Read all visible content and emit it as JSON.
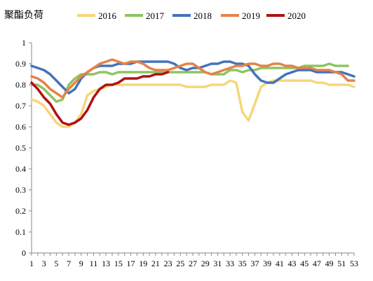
{
  "chart_data": {
    "type": "line",
    "title": "聚酯负荷",
    "xlabel": "",
    "ylabel": "",
    "ylim": [
      0,
      1
    ],
    "yticks": [
      "0",
      "0.1",
      "0.2",
      "0.3",
      "0.4",
      "0.5",
      "0.6",
      "0.7",
      "0.8",
      "0.9",
      "1"
    ],
    "xlim": [
      1,
      53
    ],
    "xticks": [
      "1",
      "3",
      "5",
      "7",
      "9",
      "11",
      "13",
      "15",
      "17",
      "19",
      "21",
      "23",
      "25",
      "27",
      "29",
      "31",
      "33",
      "35",
      "37",
      "39",
      "41",
      "43",
      "45",
      "47",
      "49",
      "51",
      "53"
    ],
    "grid": false,
    "legend_position": "top",
    "series": [
      {
        "name": "2016",
        "color": "#F5D67A",
        "x": [
          1,
          2,
          3,
          4,
          5,
          6,
          7,
          8,
          9,
          10,
          11,
          12,
          13,
          14,
          15,
          16,
          17,
          18,
          19,
          20,
          21,
          22,
          23,
          24,
          25,
          26,
          27,
          28,
          29,
          30,
          31,
          32,
          33,
          34,
          35,
          36,
          37,
          38,
          39,
          40,
          41,
          42,
          43,
          44,
          45,
          46,
          47,
          48,
          49,
          50,
          51,
          52,
          53
        ],
        "y": [
          0.73,
          0.72,
          0.7,
          0.66,
          0.62,
          0.6,
          0.6,
          0.62,
          0.66,
          0.75,
          0.77,
          0.78,
          0.79,
          0.8,
          0.8,
          0.8,
          0.8,
          0.8,
          0.8,
          0.8,
          0.8,
          0.8,
          0.8,
          0.8,
          0.8,
          0.79,
          0.79,
          0.79,
          0.79,
          0.8,
          0.8,
          0.8,
          0.82,
          0.81,
          0.67,
          0.63,
          0.71,
          0.79,
          0.81,
          0.82,
          0.82,
          0.82,
          0.82,
          0.82,
          0.82,
          0.82,
          0.81,
          0.81,
          0.8,
          0.8,
          0.8,
          0.8,
          0.79
        ]
      },
      {
        "name": "2017",
        "color": "#8DC560",
        "x": [
          1,
          2,
          3,
          4,
          5,
          6,
          7,
          8,
          9,
          10,
          11,
          12,
          13,
          14,
          15,
          16,
          17,
          18,
          19,
          20,
          21,
          22,
          23,
          24,
          25,
          26,
          27,
          28,
          29,
          30,
          31,
          32,
          33,
          34,
          35,
          36,
          37,
          38,
          39,
          40,
          41,
          42,
          43,
          44,
          45,
          46,
          47,
          48,
          49,
          50,
          51,
          52
        ],
        "y": [
          0.8,
          0.8,
          0.78,
          0.75,
          0.72,
          0.73,
          0.8,
          0.83,
          0.85,
          0.85,
          0.85,
          0.86,
          0.86,
          0.85,
          0.86,
          0.86,
          0.86,
          0.86,
          0.86,
          0.86,
          0.86,
          0.86,
          0.86,
          0.86,
          0.86,
          0.86,
          0.86,
          0.86,
          0.86,
          0.85,
          0.85,
          0.85,
          0.87,
          0.87,
          0.86,
          0.87,
          0.87,
          0.88,
          0.88,
          0.88,
          0.88,
          0.88,
          0.88,
          0.88,
          0.89,
          0.89,
          0.89,
          0.89,
          0.9,
          0.89,
          0.89,
          0.89
        ]
      },
      {
        "name": "2018",
        "color": "#4573B9",
        "x": [
          1,
          2,
          3,
          4,
          5,
          6,
          7,
          8,
          9,
          10,
          11,
          12,
          13,
          14,
          15,
          16,
          17,
          18,
          19,
          20,
          21,
          22,
          23,
          24,
          25,
          26,
          27,
          28,
          29,
          30,
          31,
          32,
          33,
          34,
          35,
          36,
          37,
          38,
          39,
          40,
          41,
          42,
          43,
          44,
          45,
          46,
          47,
          48,
          49,
          50,
          51,
          52,
          53
        ],
        "y": [
          0.89,
          0.88,
          0.87,
          0.85,
          0.82,
          0.79,
          0.76,
          0.78,
          0.83,
          0.86,
          0.88,
          0.89,
          0.89,
          0.89,
          0.9,
          0.9,
          0.9,
          0.91,
          0.91,
          0.91,
          0.91,
          0.91,
          0.91,
          0.9,
          0.88,
          0.87,
          0.88,
          0.88,
          0.89,
          0.9,
          0.9,
          0.91,
          0.91,
          0.9,
          0.9,
          0.89,
          0.85,
          0.82,
          0.81,
          0.81,
          0.83,
          0.85,
          0.86,
          0.87,
          0.87,
          0.87,
          0.86,
          0.86,
          0.86,
          0.86,
          0.86,
          0.85,
          0.84
        ]
      },
      {
        "name": "2019",
        "color": "#E5824A",
        "x": [
          1,
          2,
          3,
          4,
          5,
          6,
          7,
          8,
          9,
          10,
          11,
          12,
          13,
          14,
          15,
          16,
          17,
          18,
          19,
          20,
          21,
          22,
          23,
          24,
          25,
          26,
          27,
          28,
          29,
          30,
          31,
          32,
          33,
          34,
          35,
          36,
          37,
          38,
          39,
          40,
          41,
          42,
          43,
          44,
          45,
          46,
          47,
          48,
          49,
          50,
          51,
          52,
          53
        ],
        "y": [
          0.84,
          0.83,
          0.81,
          0.78,
          0.76,
          0.74,
          0.78,
          0.81,
          0.84,
          0.86,
          0.88,
          0.9,
          0.91,
          0.92,
          0.91,
          0.9,
          0.91,
          0.91,
          0.9,
          0.88,
          0.87,
          0.87,
          0.87,
          0.88,
          0.89,
          0.9,
          0.9,
          0.88,
          0.86,
          0.85,
          0.86,
          0.87,
          0.88,
          0.89,
          0.89,
          0.9,
          0.9,
          0.89,
          0.89,
          0.9,
          0.9,
          0.89,
          0.89,
          0.88,
          0.88,
          0.88,
          0.87,
          0.87,
          0.87,
          0.86,
          0.85,
          0.82,
          0.82
        ]
      },
      {
        "name": "2020",
        "color": "#B01016",
        "x": [
          1,
          2,
          3,
          4,
          5,
          6,
          7,
          8,
          9,
          10,
          11,
          12,
          13,
          14,
          15,
          16,
          17,
          18,
          19,
          20,
          21,
          22,
          23
        ],
        "y": [
          0.81,
          0.78,
          0.74,
          0.71,
          0.66,
          0.62,
          0.61,
          0.62,
          0.64,
          0.68,
          0.74,
          0.78,
          0.8,
          0.8,
          0.81,
          0.83,
          0.83,
          0.83,
          0.84,
          0.84,
          0.85,
          0.85,
          0.86
        ]
      }
    ]
  }
}
